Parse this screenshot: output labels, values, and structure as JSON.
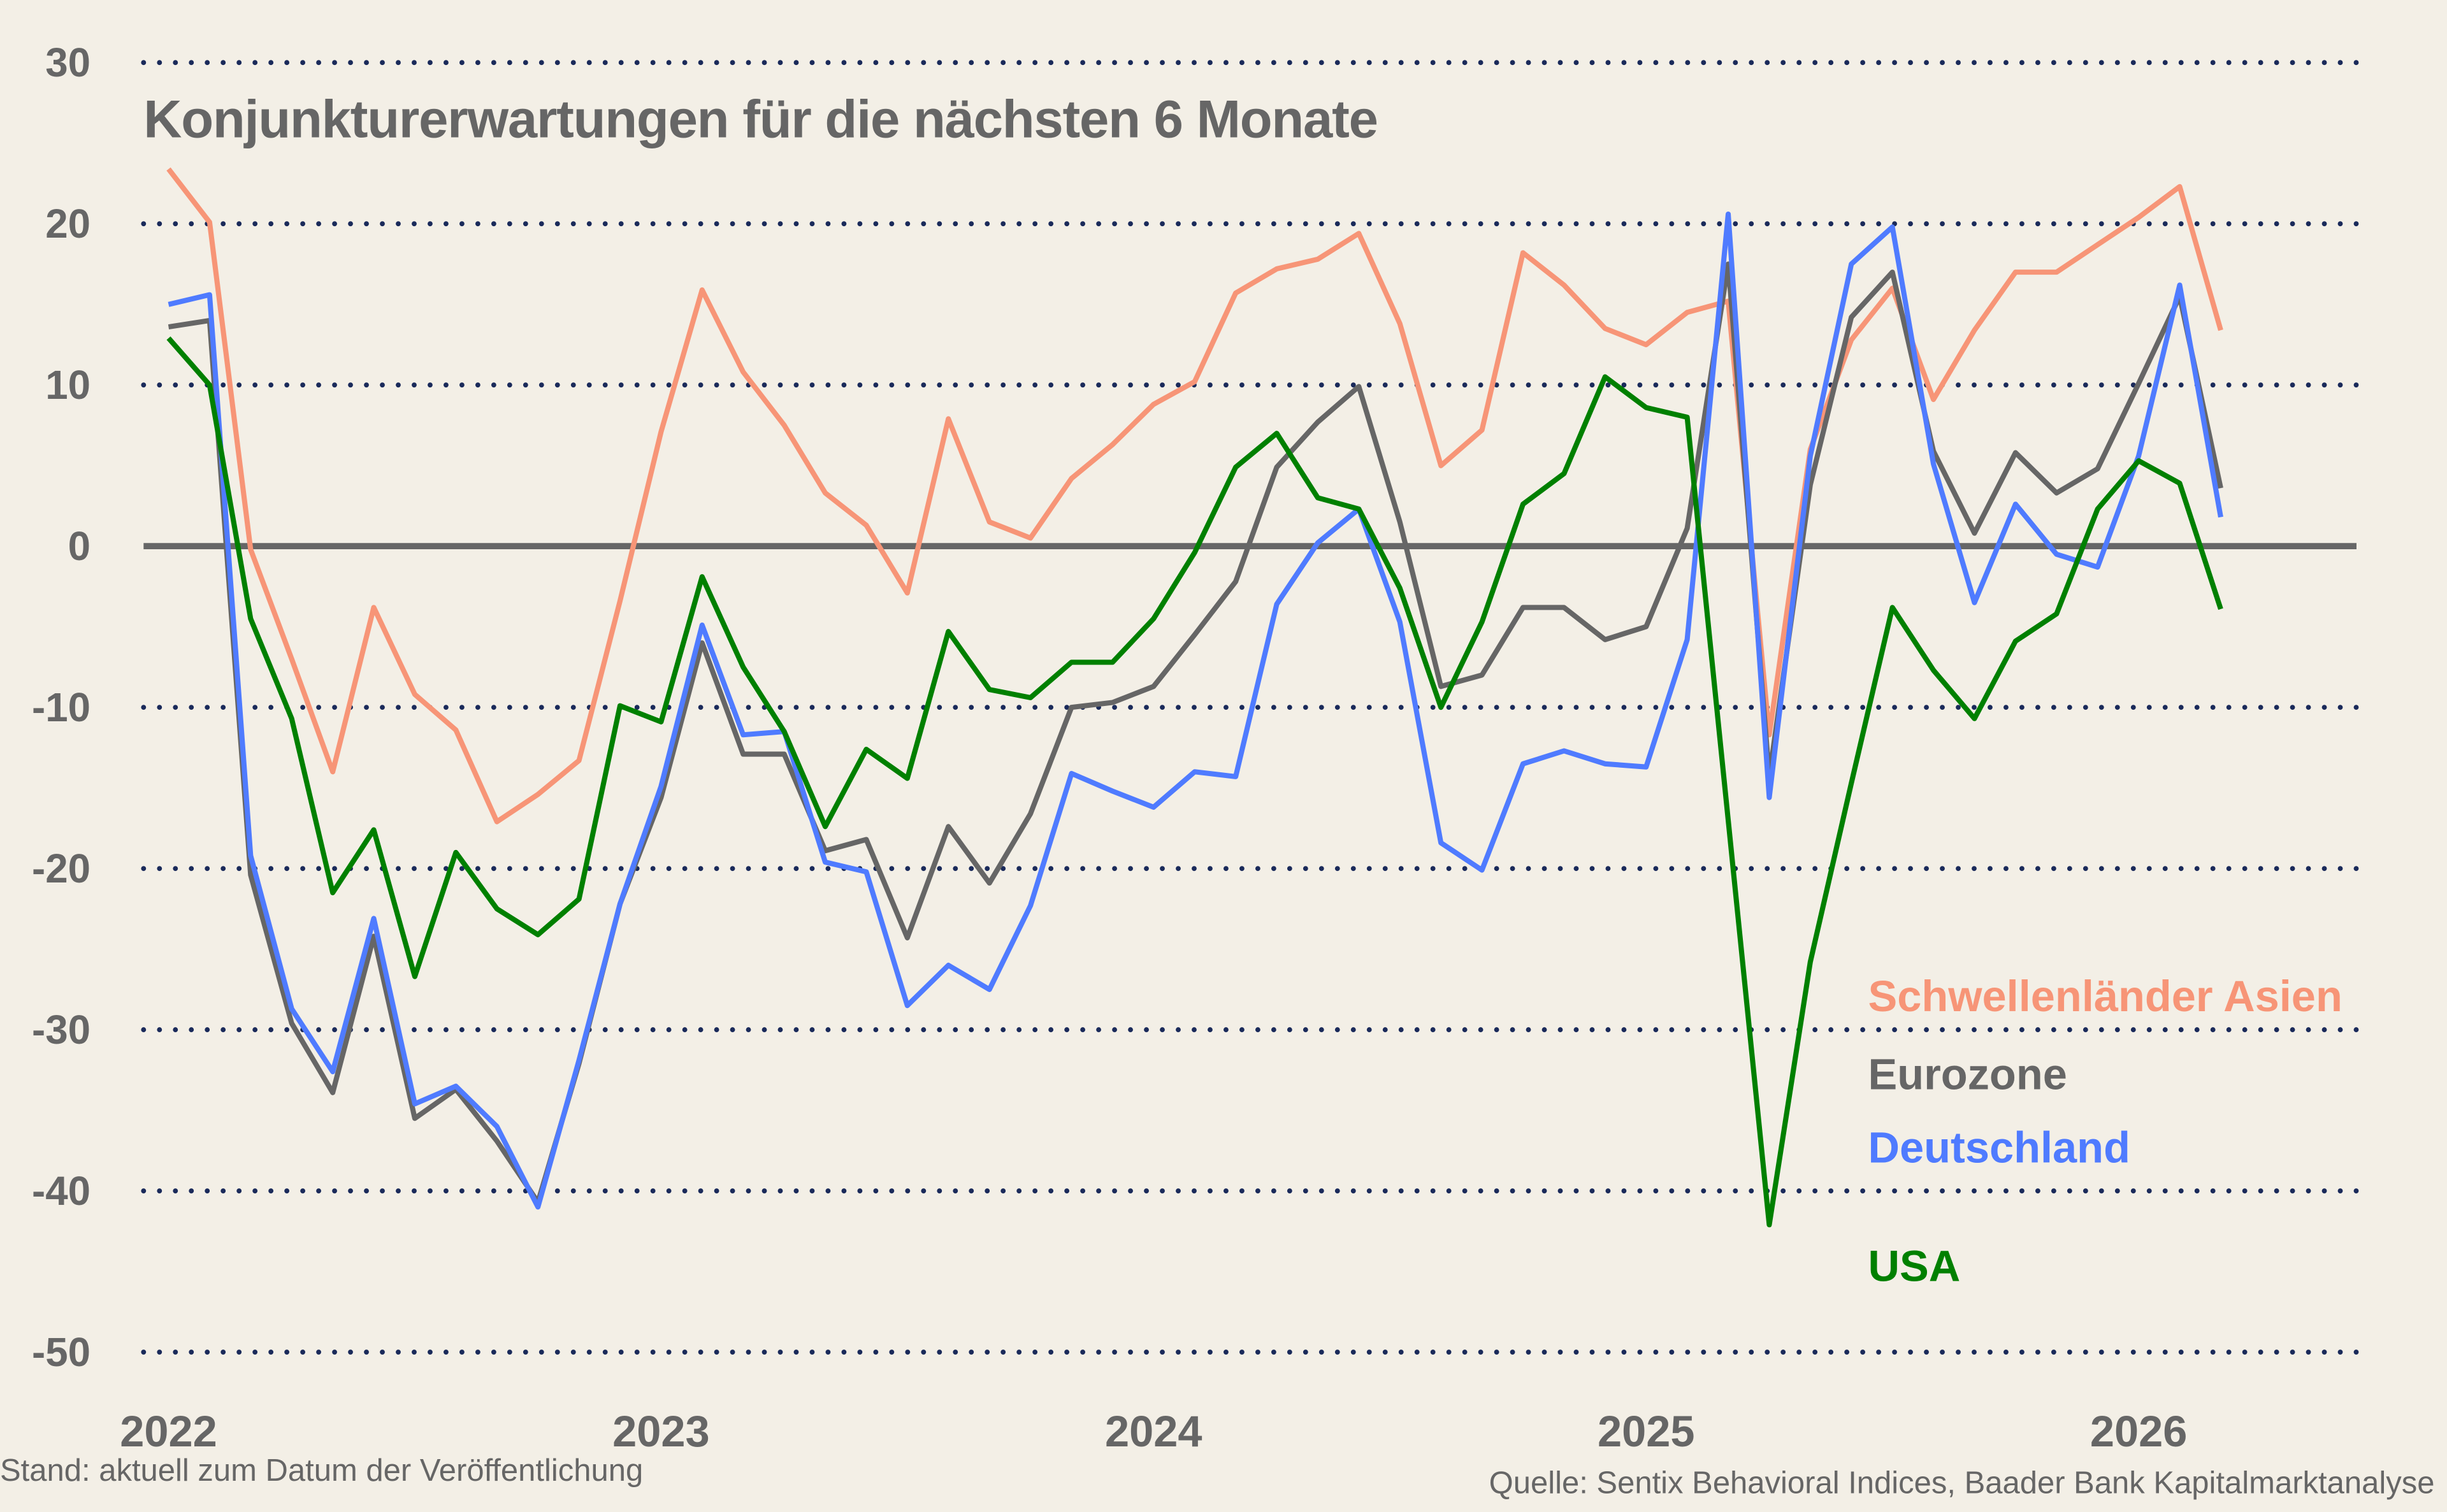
{
  "chart_data": {
    "type": "line",
    "title": "Konjunkturerwartungen für die nächsten 6 Monate",
    "xlabel": "",
    "ylabel": "",
    "ylim": [
      -50,
      30
    ],
    "yticks": [
      30,
      20,
      10,
      0,
      -10,
      -20,
      -30,
      -40,
      -50
    ],
    "xtick_labels": [
      "2022",
      "2023",
      "2024",
      "2025",
      "2026"
    ],
    "grid": "horizontal dotted",
    "legend_placement": "bottom-right",
    "x": [
      "2022-01",
      "2022-02",
      "2022-03",
      "2022-04",
      "2022-05",
      "2022-06",
      "2022-07",
      "2022-08",
      "2022-09",
      "2022-10",
      "2022-11",
      "2022-12",
      "2023-01",
      "2023-02",
      "2023-03",
      "2023-04",
      "2023-05",
      "2023-06",
      "2023-07",
      "2023-08",
      "2023-09",
      "2023-10",
      "2023-11",
      "2023-12",
      "2024-01",
      "2024-02",
      "2024-03",
      "2024-04",
      "2024-05",
      "2024-06",
      "2024-07",
      "2024-08",
      "2024-09",
      "2024-10",
      "2024-11",
      "2024-12",
      "2025-01",
      "2025-02",
      "2025-03",
      "2025-04",
      "2025-05",
      "2025-06",
      "2025-07",
      "2025-08",
      "2025-09",
      "2025-10",
      "2025-11",
      "2025-12",
      "2026-01",
      "2026-02",
      "2026-03"
    ],
    "series": [
      {
        "name": "Schwellenländer Asien",
        "color": "#f79577",
        "values": [
          23.4,
          20.1,
          -0.2,
          -7,
          -14,
          -3.8,
          -9.2,
          -11.4,
          -17.1,
          -15.4,
          -13.3,
          -3.4,
          7.1,
          15.9,
          10.8,
          7.5,
          3.3,
          1.3,
          -2.9,
          7.9,
          1.5,
          0.5,
          4.2,
          6.3,
          8.8,
          10.2,
          15.7,
          17.2,
          17.8,
          19.4,
          13.8,
          5,
          7.2,
          18.2,
          16.2,
          13.5,
          12.5,
          14.5,
          15.2,
          -11.7,
          6,
          12.8,
          16,
          9.1,
          13.4,
          17,
          17,
          18.7,
          20.4,
          22.3,
          13.4
        ]
      },
      {
        "name": "Eurozone",
        "color": "#666666",
        "values": [
          13.6,
          14,
          -20.4,
          -29.6,
          -33.9,
          -24.2,
          -35.5,
          -33.7,
          -36.9,
          -40.7,
          -32.1,
          -22.2,
          -15.6,
          -6,
          -12.9,
          -12.9,
          -18.9,
          -18.2,
          -24.3,
          -17.4,
          -20.9,
          -16.6,
          -10,
          -9.7,
          -8.7,
          -5.5,
          -2.2,
          4.9,
          7.7,
          9.9,
          1.5,
          -8.7,
          -8,
          -3.8,
          -3.8,
          -5.8,
          -5,
          1.1,
          17.5,
          -14.3,
          3.8,
          14.2,
          17,
          5.9,
          0.8,
          5.8,
          3.3,
          4.8,
          10.1,
          15.5,
          3.6
        ]
      },
      {
        "name": "Deutschland",
        "color": "#4f7bff",
        "values": [
          15,
          15.6,
          -19.2,
          -28.7,
          -32.6,
          -23.1,
          -34.6,
          -33.5,
          -36,
          -41,
          -31.9,
          -22.2,
          -14.9,
          -4.9,
          -11.7,
          -11.5,
          -19.6,
          -20.2,
          -28.5,
          -26,
          -27.5,
          -22.3,
          -14.1,
          -15.2,
          -16.2,
          -14,
          -14.3,
          -3.6,
          0.2,
          2.3,
          -4.7,
          -18.4,
          -20.1,
          -13.5,
          -12.7,
          -13.5,
          -13.7,
          -5.8,
          20.6,
          -15.6,
          5.6,
          17.5,
          19.8,
          5.1,
          -3.5,
          2.6,
          -0.5,
          -1.3,
          5.6,
          16.2,
          1.8
        ]
      },
      {
        "name": "USA",
        "color": "#008000",
        "values": [
          12.9,
          10,
          -4.5,
          -10.7,
          -21.5,
          -17.6,
          -26.7,
          -19,
          -22.5,
          -24.1,
          -21.9,
          -9.9,
          -10.9,
          -1.9,
          -7.5,
          -11.5,
          -17.4,
          -12.6,
          -14.4,
          -5.3,
          -8.9,
          -9.4,
          -7.2,
          -7.2,
          -4.5,
          -0.4,
          4.9,
          7,
          3,
          2.3,
          -2.6,
          -10,
          -4.7,
          2.6,
          4.5,
          10.5,
          8.6,
          8,
          -17,
          -42.1,
          -25.8,
          -14.7,
          -3.8,
          -7.7,
          -10.7,
          -5.9,
          -4.2,
          2.3,
          5.3,
          3.9,
          -3.9
        ]
      }
    ]
  },
  "footer": {
    "left": "Stand: aktuell zum Datum der Veröffentlichung",
    "right": "Quelle: Sentix Behavioral Indices, Baader Bank Kapitalmarktanalyse"
  },
  "colors": {
    "background": "#f3efe6",
    "grid": "#1a2a5a",
    "zero_line": "#666666",
    "text": "#666666"
  }
}
